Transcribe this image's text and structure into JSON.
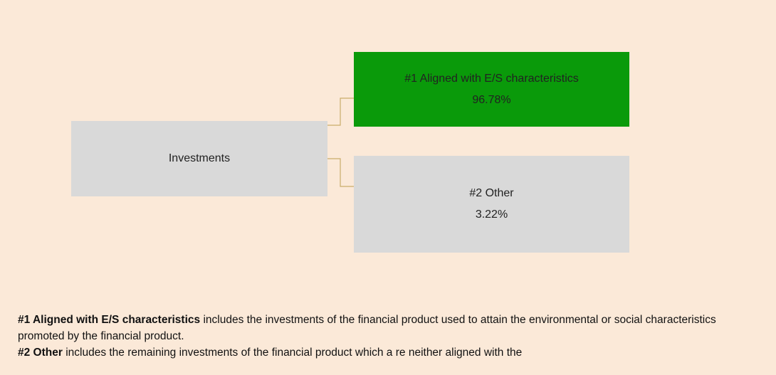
{
  "nodes": [
    {
      "label": "Investments"
    },
    {
      "label": "#1 Aligned with E/S characteristics",
      "value": "96.78%"
    },
    {
      "label": "#2 Other",
      "value": "3.22%"
    }
  ],
  "notes": [
    {
      "term": "#1 Aligned with E/S characteristics",
      "text": "includes the investments of the financial product used to attain the environmental or social characteristics promoted by the financial product."
    },
    {
      "term": "#2 Other",
      "text": "includes the remaining investments of the financial product which a re neither aligned with the"
    }
  ]
}
